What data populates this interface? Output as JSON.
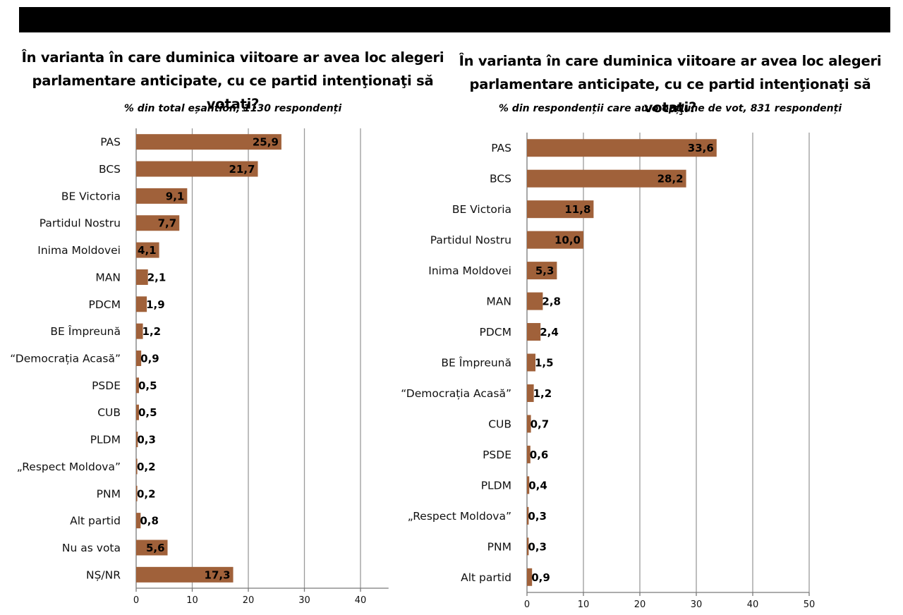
{
  "colors": {
    "bar": "#a0613a",
    "grid": "#9a9a9a",
    "axis": "#7a7a7a",
    "top_bar": "#000000"
  },
  "chart_data": [
    {
      "type": "bar",
      "orientation": "horizontal",
      "title": "În varianta în care duminica viitoare ar avea loc alegeri parlamentare anticipate, cu ce partid intenţionaţi să votaţi?",
      "subtitle": "% din total eșantion, 1130 respondenți",
      "categories": [
        "PAS",
        "BCS",
        "BE Victoria",
        "Partidul Nostru",
        "Inima Moldovei",
        "MAN",
        "PDCM",
        "BE Împreună",
        "“Democrația Acasă”",
        "PSDE",
        "CUB",
        "PLDM",
        "„Respect Moldova”",
        "PNM",
        "Alt partid",
        "Nu as vota",
        "NȘ/NR"
      ],
      "values": [
        25.9,
        21.7,
        9.1,
        7.7,
        4.1,
        2.1,
        1.9,
        1.2,
        0.9,
        0.5,
        0.5,
        0.3,
        0.2,
        0.2,
        0.8,
        5.6,
        17.3
      ],
      "value_labels": [
        "25,9",
        "21,7",
        "9,1",
        "7,7",
        "4,1",
        "2,1",
        "1,9",
        "1,2",
        "0,9",
        "0,5",
        "0,5",
        "0,3",
        "0,2",
        "0,2",
        "0,8",
        "5,6",
        "17,3"
      ],
      "xlim": [
        0,
        45
      ],
      "xticks": [
        0,
        10,
        20,
        30,
        40
      ],
      "grid": true
    },
    {
      "type": "bar",
      "orientation": "horizontal",
      "title": "În varianta în care duminica viitoare ar avea loc alegeri parlamentare anticipate, cu ce partid intenţionaţi să votaţi?",
      "subtitle": "% din respondenții care au o opțiune de vot, 831 respondenți",
      "categories": [
        "PAS",
        "BCS",
        "BE Victoria",
        "Partidul Nostru",
        "Inima Moldovei",
        "MAN",
        "PDCM",
        "BE Împreună",
        "“Democrația Acasă”",
        "CUB",
        "PSDE",
        "PLDM",
        "„Respect Moldova”",
        "PNM",
        "Alt partid"
      ],
      "values": [
        33.6,
        28.2,
        11.8,
        10.0,
        5.3,
        2.8,
        2.4,
        1.5,
        1.2,
        0.7,
        0.6,
        0.4,
        0.3,
        0.3,
        0.9
      ],
      "value_labels": [
        "33,6",
        "28,2",
        "11,8",
        "10,0",
        "5,3",
        "2,8",
        "2,4",
        "1,5",
        "1,2",
        "0,7",
        "0,6",
        "0,4",
        "0,3",
        "0,3",
        "0,9"
      ],
      "xlim": [
        0,
        50
      ],
      "xticks": [
        0,
        10,
        20,
        30,
        40,
        50
      ],
      "grid": true
    }
  ]
}
